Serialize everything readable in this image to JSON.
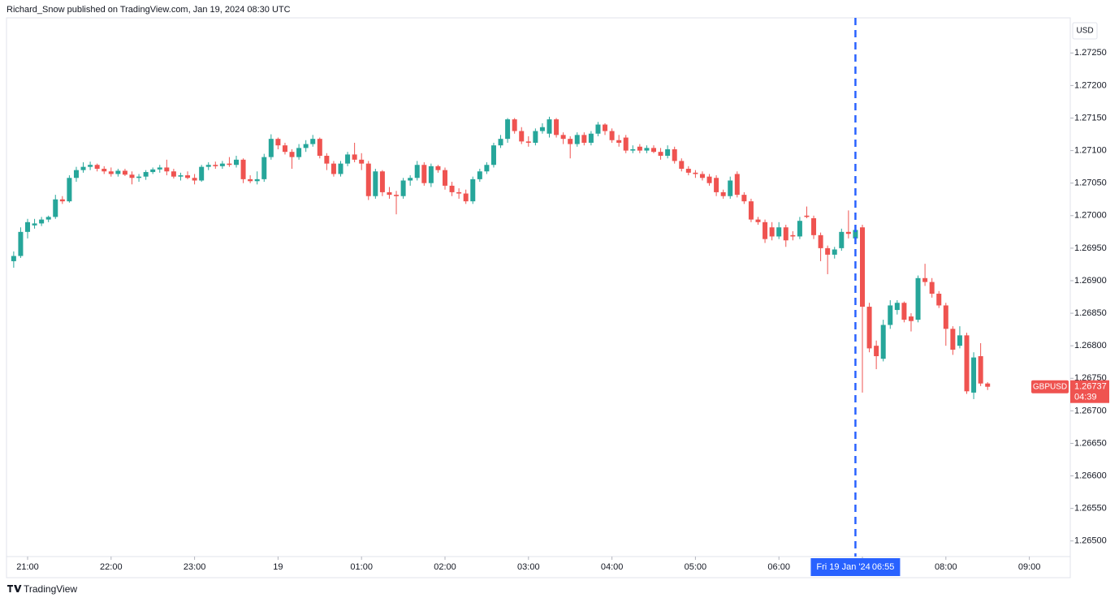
{
  "chart_data": {
    "type": "candlestick",
    "header": "Richard_Snow published on TradingView.com, Jan 19, 2024 08:30 UTC",
    "currency": "USD",
    "symbol": "GBPUSD",
    "last_price": 1.26737,
    "countdown": "04:39",
    "footer": "TradingView",
    "up_color": "#26a69a",
    "down_color": "#ef5350",
    "crosshair": {
      "x": "06:55",
      "date_label": "Fri 19 Jan '24",
      "time_label": "06:55",
      "color": "#2962ff"
    },
    "ylim": [
      1.26476,
      1.27304
    ],
    "yticks": [
      {
        "value": 1.265,
        "label": "1.26500"
      },
      {
        "value": 1.2655,
        "label": "1.26550"
      },
      {
        "value": 1.266,
        "label": "1.26600"
      },
      {
        "value": 1.2665,
        "label": "1.26650"
      },
      {
        "value": 1.267,
        "label": "1.26700"
      },
      {
        "value": 1.2675,
        "label": "1.26750"
      },
      {
        "value": 1.268,
        "label": "1.26800"
      },
      {
        "value": 1.2685,
        "label": "1.26850"
      },
      {
        "value": 1.269,
        "label": "1.26900"
      },
      {
        "value": 1.2695,
        "label": "1.26950"
      },
      {
        "value": 1.27,
        "label": "1.27000"
      },
      {
        "value": 1.2705,
        "label": "1.27050"
      },
      {
        "value": 1.271,
        "label": "1.27100"
      },
      {
        "value": 1.2715,
        "label": "1.27150"
      },
      {
        "value": 1.272,
        "label": "1.27200"
      },
      {
        "value": 1.2725,
        "label": "1.27250"
      }
    ],
    "xticks": [
      {
        "value": "21:00",
        "label": "21:00"
      },
      {
        "value": "22:00",
        "label": "22:00"
      },
      {
        "value": "23:00",
        "label": "23:00"
      },
      {
        "value": "00:00",
        "label": "19"
      },
      {
        "value": "01:00",
        "label": "01:00"
      },
      {
        "value": "02:00",
        "label": "02:00"
      },
      {
        "value": "03:00",
        "label": "03:00"
      },
      {
        "value": "04:00",
        "label": "04:00"
      },
      {
        "value": "05:00",
        "label": "05:00"
      },
      {
        "value": "06:00",
        "label": "06:00"
      },
      {
        "value": "07:00",
        "label": "07:00"
      },
      {
        "value": "08:00",
        "label": "08:00"
      },
      {
        "value": "09:00",
        "label": "09:00"
      }
    ],
    "x": [
      "20:50",
      "20:55",
      "21:00",
      "21:05",
      "21:10",
      "21:15",
      "21:20",
      "21:25",
      "21:30",
      "21:35",
      "21:40",
      "21:45",
      "21:50",
      "21:55",
      "22:00",
      "22:05",
      "22:10",
      "22:15",
      "22:20",
      "22:25",
      "22:30",
      "22:35",
      "22:40",
      "22:45",
      "22:50",
      "22:55",
      "23:00",
      "23:05",
      "23:10",
      "23:15",
      "23:20",
      "23:25",
      "23:30",
      "23:35",
      "23:40",
      "23:45",
      "23:50",
      "23:55",
      "00:00",
      "00:05",
      "00:10",
      "00:15",
      "00:20",
      "00:25",
      "00:30",
      "00:35",
      "00:40",
      "00:45",
      "00:50",
      "00:55",
      "01:00",
      "01:05",
      "01:10",
      "01:15",
      "01:20",
      "01:25",
      "01:30",
      "01:35",
      "01:40",
      "01:45",
      "01:50",
      "01:55",
      "02:00",
      "02:05",
      "02:10",
      "02:15",
      "02:20",
      "02:25",
      "02:30",
      "02:35",
      "02:40",
      "02:45",
      "02:50",
      "02:55",
      "03:00",
      "03:05",
      "03:10",
      "03:15",
      "03:20",
      "03:25",
      "03:30",
      "03:35",
      "03:40",
      "03:45",
      "03:50",
      "03:55",
      "04:00",
      "04:05",
      "04:10",
      "04:15",
      "04:20",
      "04:25",
      "04:30",
      "04:35",
      "04:40",
      "04:45",
      "04:50",
      "04:55",
      "05:00",
      "05:05",
      "05:10",
      "05:15",
      "05:20",
      "05:25",
      "05:30",
      "05:35",
      "05:40",
      "05:45",
      "05:50",
      "05:55",
      "06:00",
      "06:05",
      "06:10",
      "06:15",
      "06:20",
      "06:25",
      "06:30",
      "06:35",
      "06:40",
      "06:45",
      "06:50",
      "06:55",
      "07:00",
      "07:05",
      "07:10",
      "07:15",
      "07:20",
      "07:25",
      "07:30",
      "07:35",
      "07:40",
      "07:45",
      "07:50",
      "07:55",
      "08:00",
      "08:05",
      "08:10",
      "08:15",
      "08:20",
      "08:25",
      "08:30"
    ],
    "open": [
      1.2693,
      1.26938,
      1.26975,
      1.26985,
      1.26988,
      1.26994,
      1.26998,
      1.27025,
      1.27022,
      1.27058,
      1.2707,
      1.27075,
      1.27078,
      1.27072,
      1.27068,
      1.27064,
      1.27069,
      1.27063,
      1.27058,
      1.2706,
      1.27067,
      1.27071,
      1.27074,
      1.27068,
      1.2706,
      1.27062,
      1.27058,
      1.27054,
      1.27075,
      1.27078,
      1.27076,
      1.2708,
      1.27078,
      1.27086,
      1.27056,
      1.27053,
      1.27056,
      1.2709,
      1.27118,
      1.27108,
      1.27098,
      1.2709,
      1.27104,
      1.2711,
      1.27118,
      1.27092,
      1.2708,
      1.27064,
      1.2708,
      1.27094,
      1.27086,
      1.2708,
      1.2703,
      1.27068,
      1.27036,
      1.27032,
      1.2703,
      1.27054,
      1.27058,
      1.27078,
      1.2705,
      1.27076,
      1.2707,
      1.27046,
      1.27036,
      1.27034,
      1.27022,
      1.27056,
      1.27068,
      1.27078,
      1.27108,
      1.27118,
      1.27148,
      1.2713,
      1.27114,
      1.27112,
      1.2713,
      1.27126,
      1.27148,
      1.27124,
      1.27118,
      1.2711,
      1.27124,
      1.27112,
      1.27126,
      1.2714,
      1.2713,
      1.27116,
      1.2712,
      1.271,
      1.27106,
      1.271,
      1.27104,
      1.27098,
      1.27092,
      1.27102,
      1.27084,
      1.27072,
      1.27066,
      1.27064,
      1.2706,
      1.27058,
      1.27036,
      1.2703,
      1.27064,
      1.27032,
      1.27022,
      1.26994,
      1.2699,
      1.26982,
      1.26968,
      1.26982,
      1.2697,
      1.26968,
      1.27,
      1.26996,
      1.2697,
      1.2695,
      1.2694,
      1.2695,
      1.26975,
      1.26965,
      1.26982,
      1.2686,
      1.268,
      1.2678,
      1.26832,
      1.26855,
      1.26866,
      1.26845,
      1.2684,
      1.26904,
      1.26898,
      1.2688,
      1.26862,
      1.26826,
      1.268,
      1.26816,
      1.26728,
      1.26784,
      1.26742
    ],
    "high": [
      1.26945,
      1.26982,
      1.26995,
      1.26995,
      1.26998,
      1.27,
      1.27032,
      1.2703,
      1.27062,
      1.27075,
      1.27082,
      1.27083,
      1.2708,
      1.27076,
      1.27074,
      1.27072,
      1.27072,
      1.27068,
      1.27064,
      1.2707,
      1.27074,
      1.27078,
      1.27086,
      1.27072,
      1.27066,
      1.27068,
      1.27064,
      1.27078,
      1.27082,
      1.27083,
      1.27084,
      1.2709,
      1.27092,
      1.27088,
      1.27062,
      1.27068,
      1.27095,
      1.27125,
      1.2712,
      1.27112,
      1.27102,
      1.2711,
      1.27116,
      1.27124,
      1.2712,
      1.27096,
      1.27084,
      1.27084,
      1.27098,
      1.27112,
      1.27096,
      1.27084,
      1.27072,
      1.2707,
      1.27044,
      1.27038,
      1.27058,
      1.27062,
      1.27084,
      1.27082,
      1.2708,
      1.27078,
      1.27074,
      1.27052,
      1.27042,
      1.2704,
      1.2706,
      1.27072,
      1.27082,
      1.27112,
      1.27124,
      1.2715,
      1.2715,
      1.27136,
      1.27122,
      1.27134,
      1.27142,
      1.27152,
      1.2715,
      1.27128,
      1.27122,
      1.27128,
      1.27128,
      1.2713,
      1.27144,
      1.27142,
      1.27134,
      1.27124,
      1.27124,
      1.27108,
      1.2711,
      1.27108,
      1.27108,
      1.27104,
      1.27108,
      1.27106,
      1.27088,
      1.27076,
      1.2707,
      1.27068,
      1.27064,
      1.27062,
      1.2704,
      1.2706,
      1.27068,
      1.27036,
      1.27026,
      1.26998,
      1.26994,
      1.2699,
      1.2699,
      1.26986,
      1.26976,
      1.26998,
      1.27014,
      1.27,
      1.26974,
      1.26954,
      1.26952,
      1.2698,
      1.27008,
      1.26985,
      1.26986,
      1.26866,
      1.26808,
      1.2684,
      1.2687,
      1.2687,
      1.26868,
      1.2685,
      1.26908,
      1.26926,
      1.26904,
      1.26884,
      1.26866,
      1.2683,
      1.2683,
      1.2682,
      1.2679,
      1.26804,
      1.26744
    ],
    "low": [
      1.2692,
      1.26935,
      1.26965,
      1.2698,
      1.26984,
      1.2699,
      1.26995,
      1.27018,
      1.2702,
      1.27052,
      1.27066,
      1.2707,
      1.27068,
      1.27064,
      1.2706,
      1.2706,
      1.27061,
      1.27048,
      1.27052,
      1.27055,
      1.27064,
      1.27066,
      1.27062,
      1.27057,
      1.27054,
      1.27056,
      1.27048,
      1.27052,
      1.2707,
      1.27072,
      1.27072,
      1.27075,
      1.27074,
      1.2705,
      1.2705,
      1.27048,
      1.27052,
      1.27086,
      1.27102,
      1.27094,
      1.27072,
      1.27086,
      1.27098,
      1.27106,
      1.27088,
      1.2707,
      1.2706,
      1.2706,
      1.27076,
      1.27082,
      1.2707,
      1.27024,
      1.27026,
      1.2703,
      1.27026,
      1.27002,
      1.27026,
      1.27046,
      1.27054,
      1.27046,
      1.27044,
      1.27066,
      1.2704,
      1.2703,
      1.27026,
      1.27018,
      1.27018,
      1.27052,
      1.27064,
      1.27074,
      1.27104,
      1.27112,
      1.27126,
      1.2711,
      1.27106,
      1.27108,
      1.27126,
      1.2712,
      1.2712,
      1.2711,
      1.27088,
      1.27106,
      1.27108,
      1.27108,
      1.27122,
      1.27124,
      1.27112,
      1.27106,
      1.27096,
      1.27096,
      1.27096,
      1.27096,
      1.27096,
      1.27086,
      1.27088,
      1.2708,
      1.27068,
      1.27062,
      1.27058,
      1.27054,
      1.27046,
      1.2703,
      1.27026,
      1.27026,
      1.27028,
      1.27018,
      1.2699,
      1.26986,
      1.26958,
      1.26962,
      1.26964,
      1.26952,
      1.26962,
      1.26964,
      1.26996,
      1.26964,
      1.2693,
      1.2691,
      1.26934,
      1.26946,
      1.26965,
      1.2696,
      1.26728,
      1.2679,
      1.26764,
      1.26776,
      1.26826,
      1.26848,
      1.26836,
      1.26822,
      1.26836,
      1.26892,
      1.26874,
      1.26858,
      1.268,
      1.26786,
      1.26796,
      1.26726,
      1.26718,
      1.26738,
      1.26732
    ],
    "close": [
      1.26938,
      1.26975,
      1.2699,
      1.26988,
      1.26994,
      1.26998,
      1.27025,
      1.27022,
      1.27058,
      1.2707,
      1.27075,
      1.27078,
      1.27072,
      1.27068,
      1.27064,
      1.27069,
      1.27063,
      1.27058,
      1.2706,
      1.27067,
      1.27071,
      1.27074,
      1.27068,
      1.2706,
      1.27062,
      1.27058,
      1.27054,
      1.27075,
      1.27078,
      1.27076,
      1.2708,
      1.27078,
      1.27086,
      1.27056,
      1.27053,
      1.27056,
      1.2709,
      1.27118,
      1.27108,
      1.27098,
      1.2709,
      1.27104,
      1.2711,
      1.27118,
      1.27092,
      1.2708,
      1.27064,
      1.2708,
      1.27094,
      1.27086,
      1.2708,
      1.2703,
      1.27068,
      1.27036,
      1.27032,
      1.2703,
      1.27054,
      1.27058,
      1.27078,
      1.2705,
      1.27076,
      1.2707,
      1.27046,
      1.27036,
      1.27034,
      1.27022,
      1.27056,
      1.27068,
      1.27078,
      1.27108,
      1.27118,
      1.27148,
      1.2713,
      1.27114,
      1.27112,
      1.2713,
      1.27136,
      1.27148,
      1.27124,
      1.27118,
      1.2711,
      1.27124,
      1.27112,
      1.27126,
      1.2714,
      1.2713,
      1.27116,
      1.27112,
      1.271,
      1.27102,
      1.271,
      1.27104,
      1.27098,
      1.27092,
      1.27102,
      1.27084,
      1.27072,
      1.27066,
      1.27064,
      1.27058,
      1.2705,
      1.27036,
      1.2703,
      1.27054,
      1.27032,
      1.27022,
      1.26994,
      1.2699,
      1.26964,
      1.26968,
      1.26982,
      1.26962,
      1.26968,
      1.26992,
      1.26998,
      1.2697,
      1.2695,
      1.2694,
      1.26948,
      1.26975,
      1.26972,
      1.26978,
      1.2686,
      1.26796,
      1.26784,
      1.26832,
      1.26862,
      1.26866,
      1.2684,
      1.26838,
      1.26904,
      1.26898,
      1.2688,
      1.26862,
      1.26826,
      1.26794,
      1.26816,
      1.2673,
      1.26782,
      1.26742,
      1.26737
    ]
  }
}
